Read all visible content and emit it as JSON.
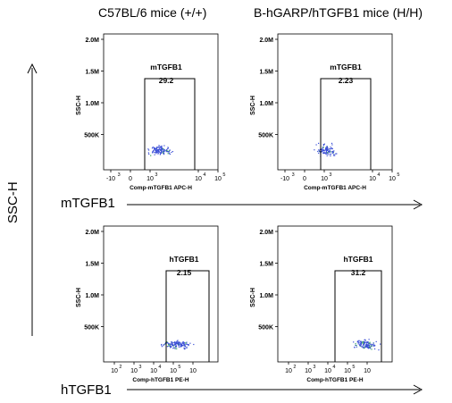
{
  "header": {
    "col1_title": "C57BL/6 mice (+/+)",
    "col2_title": "B-hGARP/hTGFB1 mice (H/H)"
  },
  "labels": {
    "y_axis_big": "SSC-H",
    "row1": "mTGFB1",
    "row2": "hTGFB1"
  },
  "chart_data": [
    {
      "type": "scatter",
      "ylabel": "SSC-H",
      "xlabel": "Comp-mTGFB1 APC-H",
      "xticks": [
        "-10",
        "0",
        "10",
        "10",
        "10"
      ],
      "xtick_exps": [
        "3",
        "",
        "3",
        "4",
        "5"
      ],
      "yticks": [
        "2.0M",
        "1.5M",
        "1.0M",
        "500K"
      ],
      "ylim": [
        0,
        2000000
      ],
      "gate": {
        "label": "mTGFB1",
        "value": "29.2"
      },
      "point_color": "#3b4fd6"
    },
    {
      "type": "scatter",
      "ylabel": "SSC-H",
      "xlabel": "Comp-mTGFB1 APC-H",
      "xticks": [
        "-10",
        "0",
        "10",
        "10",
        "10"
      ],
      "xtick_exps": [
        "3",
        "",
        "3",
        "4",
        "5"
      ],
      "yticks": [
        "2.0M",
        "1.5M",
        "1.0M",
        "500K"
      ],
      "ylim": [
        0,
        2000000
      ],
      "gate": {
        "label": "mTGFB1",
        "value": "2.23"
      },
      "point_color": "#3b4fd6"
    },
    {
      "type": "scatter",
      "ylabel": "SSC-H",
      "xlabel": "Comp-hTGFB1 PE-H",
      "xticks": [
        "10",
        "10",
        "10",
        "10",
        "10"
      ],
      "xtick_exps": [
        "2",
        "3",
        "4",
        "5",
        ""
      ],
      "yticks": [
        "2.0M",
        "1.5M",
        "1.0M",
        "500K"
      ],
      "ylim": [
        0,
        2000000
      ],
      "gate": {
        "label": "hTGFB1",
        "value": "2.15"
      },
      "point_color": "#3b4fd6"
    },
    {
      "type": "scatter",
      "ylabel": "SSC-H",
      "xlabel": "Comp-hTGFB1 PE-H",
      "xticks": [
        "10",
        "10",
        "10",
        "10",
        "10"
      ],
      "xtick_exps": [
        "2",
        "3",
        "4",
        "5",
        ""
      ],
      "yticks": [
        "2.0M",
        "1.5M",
        "1.0M",
        "500K"
      ],
      "ylim": [
        0,
        2000000
      ],
      "gate": {
        "label": "hTGFB1",
        "value": "31.2"
      },
      "point_color": "#3b4fd6"
    }
  ]
}
